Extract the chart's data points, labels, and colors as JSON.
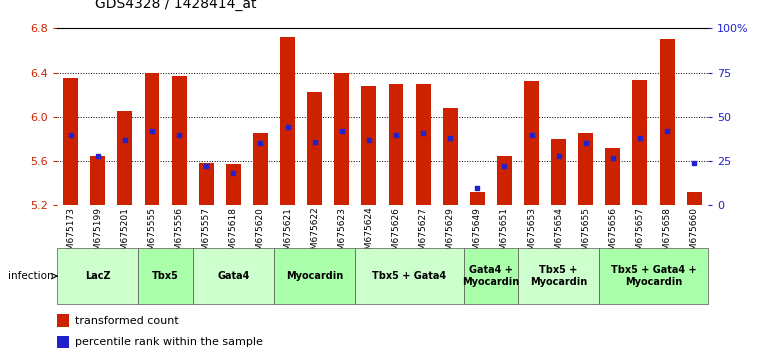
{
  "title": "GDS4328 / 1428414_at",
  "samples": [
    "GSM675173",
    "GSM675199",
    "GSM675201",
    "GSM675555",
    "GSM675556",
    "GSM675557",
    "GSM675618",
    "GSM675620",
    "GSM675621",
    "GSM675622",
    "GSM675623",
    "GSM675624",
    "GSM675626",
    "GSM675627",
    "GSM675629",
    "GSM675649",
    "GSM675651",
    "GSM675653",
    "GSM675654",
    "GSM675655",
    "GSM675656",
    "GSM675657",
    "GSM675658",
    "GSM675660"
  ],
  "transformed_count": [
    6.35,
    5.65,
    6.05,
    6.4,
    6.37,
    5.58,
    5.57,
    5.85,
    6.72,
    6.22,
    6.4,
    6.28,
    6.3,
    6.3,
    6.08,
    5.32,
    5.65,
    6.32,
    5.8,
    5.85,
    5.72,
    6.33,
    6.7,
    5.32
  ],
  "percentile_rank": [
    40,
    28,
    37,
    42,
    40,
    22,
    18,
    35,
    44,
    36,
    42,
    37,
    40,
    41,
    38,
    10,
    22,
    40,
    28,
    35,
    27,
    38,
    42,
    24
  ],
  "ylim_left": [
    5.2,
    6.8
  ],
  "ylim_right": [
    0,
    100
  ],
  "yticks_left": [
    5.2,
    5.6,
    6.0,
    6.4,
    6.8
  ],
  "yticks_right": [
    0,
    25,
    50,
    75,
    100
  ],
  "ytick_labels_right": [
    "0",
    "25",
    "50",
    "75",
    "100%"
  ],
  "bar_color": "#cc2200",
  "marker_color": "#2222cc",
  "bar_bottom": 5.2,
  "groups": [
    {
      "label": "LacZ",
      "start": 0,
      "end": 3,
      "color": "#ccffcc"
    },
    {
      "label": "Tbx5",
      "start": 3,
      "end": 5,
      "color": "#aaffaa"
    },
    {
      "label": "Gata4",
      "start": 5,
      "end": 8,
      "color": "#ccffcc"
    },
    {
      "label": "Myocardin",
      "start": 8,
      "end": 11,
      "color": "#aaffaa"
    },
    {
      "label": "Tbx5 + Gata4",
      "start": 11,
      "end": 15,
      "color": "#ccffcc"
    },
    {
      "label": "Gata4 +\nMyocardin",
      "start": 15,
      "end": 17,
      "color": "#aaffaa"
    },
    {
      "label": "Tbx5 +\nMyocardin",
      "start": 17,
      "end": 20,
      "color": "#ccffcc"
    },
    {
      "label": "Tbx5 + Gata4 +\nMyocardin",
      "start": 20,
      "end": 24,
      "color": "#aaffaa"
    }
  ],
  "group_label_fontsize": 7,
  "tick_label_fontsize": 6.5,
  "title_fontsize": 10,
  "left_axis_color": "#cc2200",
  "right_axis_color": "#2222cc",
  "legend_label_fontsize": 8
}
